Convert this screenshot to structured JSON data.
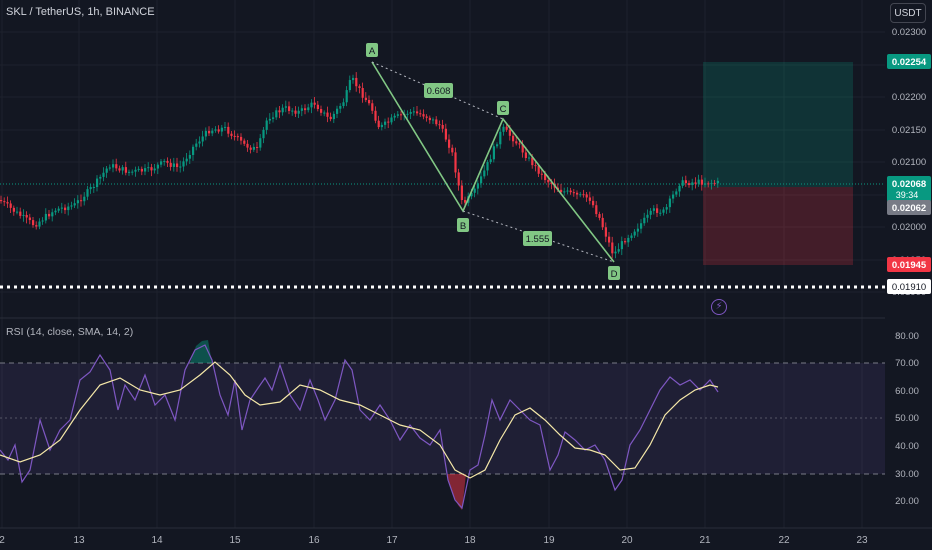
{
  "header": {
    "symbol": "SKL / TetherUS, 1h, BINANCE",
    "currency_button": "USDT"
  },
  "rsi": {
    "title": "RSI (14, close, SMA, 14, 2)",
    "axis_labels": [
      "80.00",
      "70.00",
      "60.00",
      "50.00",
      "40.00",
      "30.00",
      "20.00"
    ],
    "upper_band": 70,
    "lower_band": 30
  },
  "price_axis": {
    "labels": [
      "0.02300",
      "0.02250",
      "0.02200",
      "0.02150",
      "0.02100",
      "0.02050",
      "0.02000",
      "0.01950",
      "0.01900"
    ]
  },
  "price_tags": {
    "target": {
      "value": "0.02254",
      "color": "#089981"
    },
    "current": {
      "value": "0.02068",
      "countdown": "39:34",
      "color": "#089981"
    },
    "entry": {
      "value": "0.02062",
      "color": "#787b86"
    },
    "stop": {
      "value": "0.01945",
      "color": "#f23645"
    },
    "level": {
      "value": "0.01910",
      "color": "#ffffff"
    }
  },
  "pattern": {
    "points": [
      {
        "label": "A",
        "price": 0.02254
      },
      {
        "label": "B",
        "price": 0.02013
      },
      {
        "label": "C",
        "price": 0.02165
      },
      {
        "label": "D",
        "price": 0.01945
      }
    ],
    "ratios": [
      "0.608",
      "1.555"
    ],
    "color": "#81c784"
  },
  "time_axis": {
    "labels": [
      "2",
      "13",
      "14",
      "15",
      "16",
      "17",
      "18",
      "19",
      "20",
      "21",
      "22",
      "23"
    ]
  },
  "colors": {
    "up": "#089981",
    "down": "#f23645",
    "rsi_line": "#7e57c2",
    "rsi_ma": "#f5e8a8",
    "band_fill": "#7e57c2"
  }
}
